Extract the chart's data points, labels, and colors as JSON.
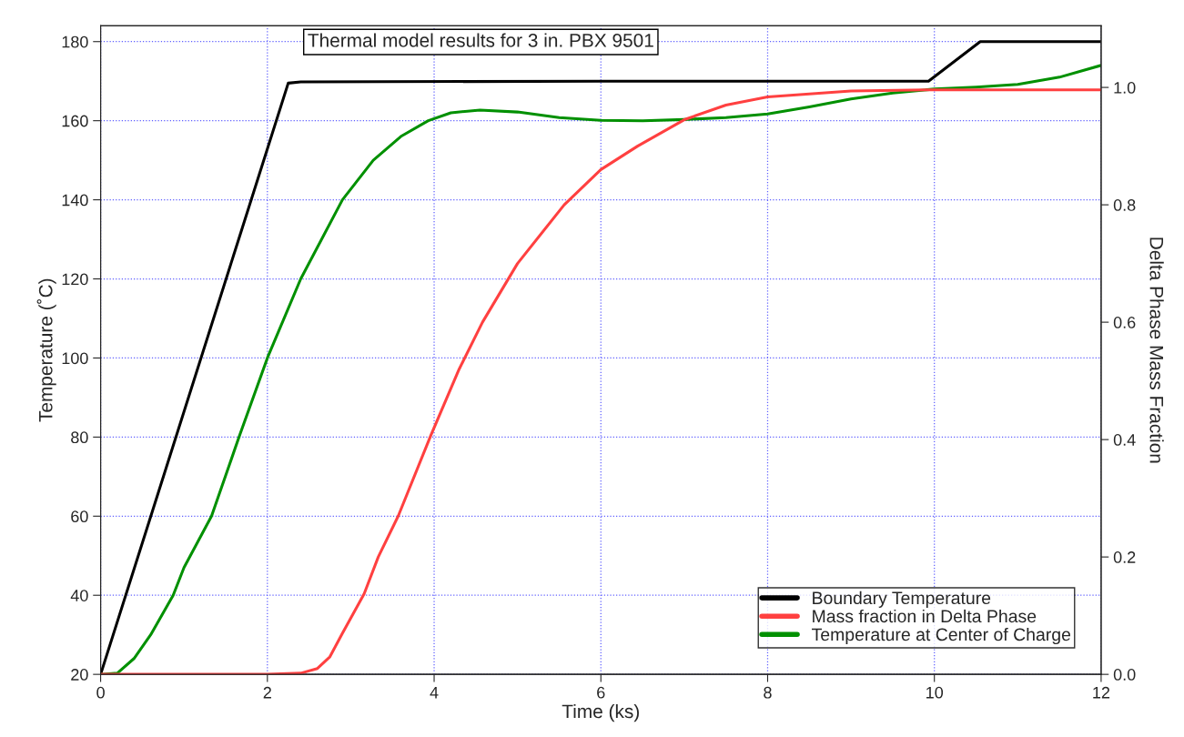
{
  "chart_data": {
    "type": "line",
    "title": "Thermal model results for 3 in. PBX 9501",
    "xlabel": "Time (ks)",
    "ylabel": "Temperature (˚C)",
    "y2label": "Delta Phase Mass Fraction",
    "xlim": [
      0,
      12
    ],
    "xticks": [
      0,
      2,
      4,
      6,
      8,
      10,
      12
    ],
    "ylim": [
      20,
      184
    ],
    "yticks": [
      20,
      40,
      60,
      80,
      100,
      120,
      140,
      160,
      180
    ],
    "y2lim": [
      0,
      1.105
    ],
    "y2ticks": [
      {
        "value": 0,
        "label": "0.0"
      },
      0.2,
      0.4,
      0.6,
      0.8,
      {
        "value": 1,
        "label": "1.0"
      }
    ],
    "grid": true,
    "legend": "bottom right",
    "line_style": "solid",
    "marker": "none",
    "series": [
      {
        "name": "Boundary Temperature",
        "color": "#000000",
        "x": [
          0,
          2.25,
          2.4,
          6,
          9.93,
          10.55,
          12
        ],
        "values": [
          20,
          169.5,
          169.8,
          170,
          170,
          180,
          180
        ]
      },
      {
        "name": "Mass fraction in Delta Phase",
        "color": "#ff4040",
        "axis": "y2",
        "x": [
          0,
          2,
          2.4,
          2.6,
          2.75,
          2.9,
          3.16,
          3.33,
          3.57,
          3.96,
          4.3,
          4.58,
          5,
          5.56,
          6,
          6.44,
          7,
          7.5,
          8,
          9,
          10,
          12
        ],
        "values": [
          0,
          0,
          0.002,
          0.01,
          0.03,
          0.07,
          0.137,
          0.2,
          0.27,
          0.407,
          0.52,
          0.6,
          0.7,
          0.8,
          0.86,
          0.9,
          0.945,
          0.97,
          0.984,
          0.994,
          0.996,
          0.996
        ]
      },
      {
        "name": "Temperature at Center of Charge",
        "color": "#009000",
        "x": [
          0,
          0.2,
          0.4,
          0.6,
          0.87,
          1.0,
          1.33,
          1.66,
          2.0,
          2.4,
          2.9,
          3.27,
          3.6,
          3.93,
          4.2,
          4.55,
          5,
          5.5,
          6,
          6.5,
          7,
          7.5,
          8,
          8.5,
          9,
          9.5,
          10,
          10.5,
          11,
          11.5,
          12
        ],
        "values": [
          20,
          20.3,
          24,
          30,
          40,
          47,
          60,
          80,
          100,
          120,
          140,
          150,
          156,
          160,
          162,
          162.7,
          162.2,
          160.8,
          160.1,
          160,
          160.3,
          160.8,
          161.7,
          163.5,
          165.5,
          167,
          168,
          168.5,
          169.2,
          171,
          174
        ]
      }
    ]
  }
}
